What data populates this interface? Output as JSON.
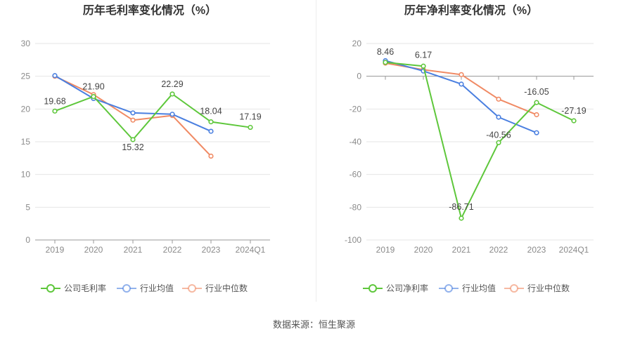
{
  "source_text": "数据来源：恒生聚源",
  "colors": {
    "company": "#5ec73b",
    "industry_avg": "#4a7fe0",
    "industry_median": "#f08a64",
    "grid": "#e6e6e6",
    "axis_text": "#8a8a8a",
    "label_text": "#444444",
    "title_text": "#333333"
  },
  "chart_data": [
    {
      "type": "line",
      "title": "历年毛利率变化情况（%）",
      "categories": [
        "2019",
        "2020",
        "2021",
        "2022",
        "2023",
        "2024Q1"
      ],
      "ylim": [
        0,
        30
      ],
      "yticks": [
        0,
        5,
        10,
        15,
        20,
        25,
        30
      ],
      "grid": true,
      "legend_position": "bottom",
      "series": [
        {
          "name": "公司毛利率",
          "color_key": "company",
          "values": [
            19.68,
            21.9,
            15.32,
            22.29,
            18.04,
            17.19
          ],
          "labels": [
            "19.68",
            "21.90",
            "15.32",
            "22.29",
            "18.04",
            "17.19"
          ]
        },
        {
          "name": "行业均值",
          "color_key": "industry_avg",
          "values": [
            25.1,
            21.6,
            19.4,
            19.2,
            16.6,
            null
          ]
        },
        {
          "name": "行业中位数",
          "color_key": "industry_median",
          "values": [
            25.0,
            22.2,
            18.3,
            19.0,
            12.8,
            null
          ]
        }
      ]
    },
    {
      "type": "line",
      "title": "历年净利率变化情况（%）",
      "categories": [
        "2019",
        "2020",
        "2021",
        "2022",
        "2023",
        "2024Q1"
      ],
      "ylim": [
        -100,
        20
      ],
      "yticks": [
        -100,
        -80,
        -60,
        -40,
        -20,
        0,
        20
      ],
      "grid": true,
      "legend_position": "bottom",
      "series": [
        {
          "name": "公司净利率",
          "color_key": "company",
          "values": [
            8.46,
            6.17,
            -86.71,
            -40.56,
            -16.05,
            -27.19
          ],
          "labels": [
            "8.46",
            "6.17",
            "-86.71",
            "-40.56",
            "-16.05",
            "-27.19"
          ]
        },
        {
          "name": "行业均值",
          "color_key": "industry_avg",
          "values": [
            9.5,
            3.2,
            -4.8,
            -25.0,
            -34.5,
            null
          ]
        },
        {
          "name": "行业中位数",
          "color_key": "industry_median",
          "values": [
            8.0,
            4.0,
            1.0,
            -14.0,
            -23.5,
            null
          ]
        }
      ]
    }
  ]
}
